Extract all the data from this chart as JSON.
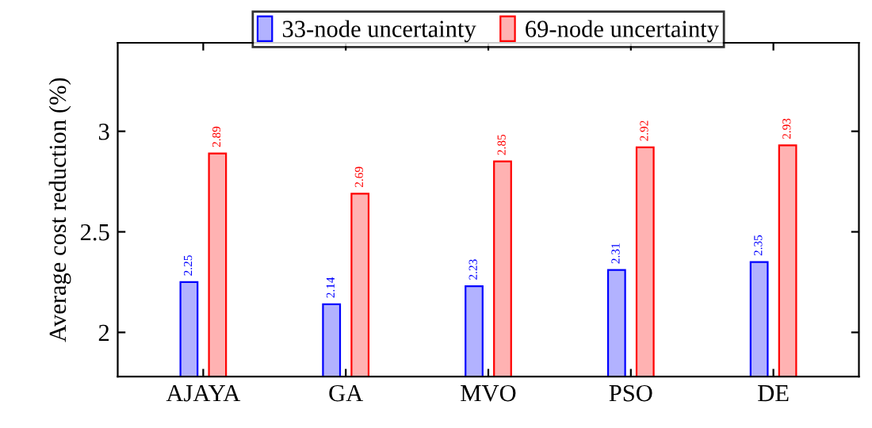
{
  "chart_data": {
    "type": "bar",
    "ylabel": "Average cost reduction (%)",
    "categories": [
      "AJAYA",
      "GA",
      "MVO",
      "PSO",
      "DE"
    ],
    "series": [
      {
        "name": "33-node uncertainty",
        "color": "#0000ff",
        "values": [
          2.25,
          2.14,
          2.23,
          2.31,
          2.35
        ]
      },
      {
        "name": "69-node uncertainty",
        "color": "#ff0000",
        "values": [
          2.89,
          2.69,
          2.85,
          2.92,
          2.93
        ]
      }
    ],
    "ylim": [
      1.78,
      3.44
    ],
    "yticks": [
      2,
      2.5,
      3
    ],
    "data_labels": true,
    "legend": "top",
    "grid": false
  }
}
